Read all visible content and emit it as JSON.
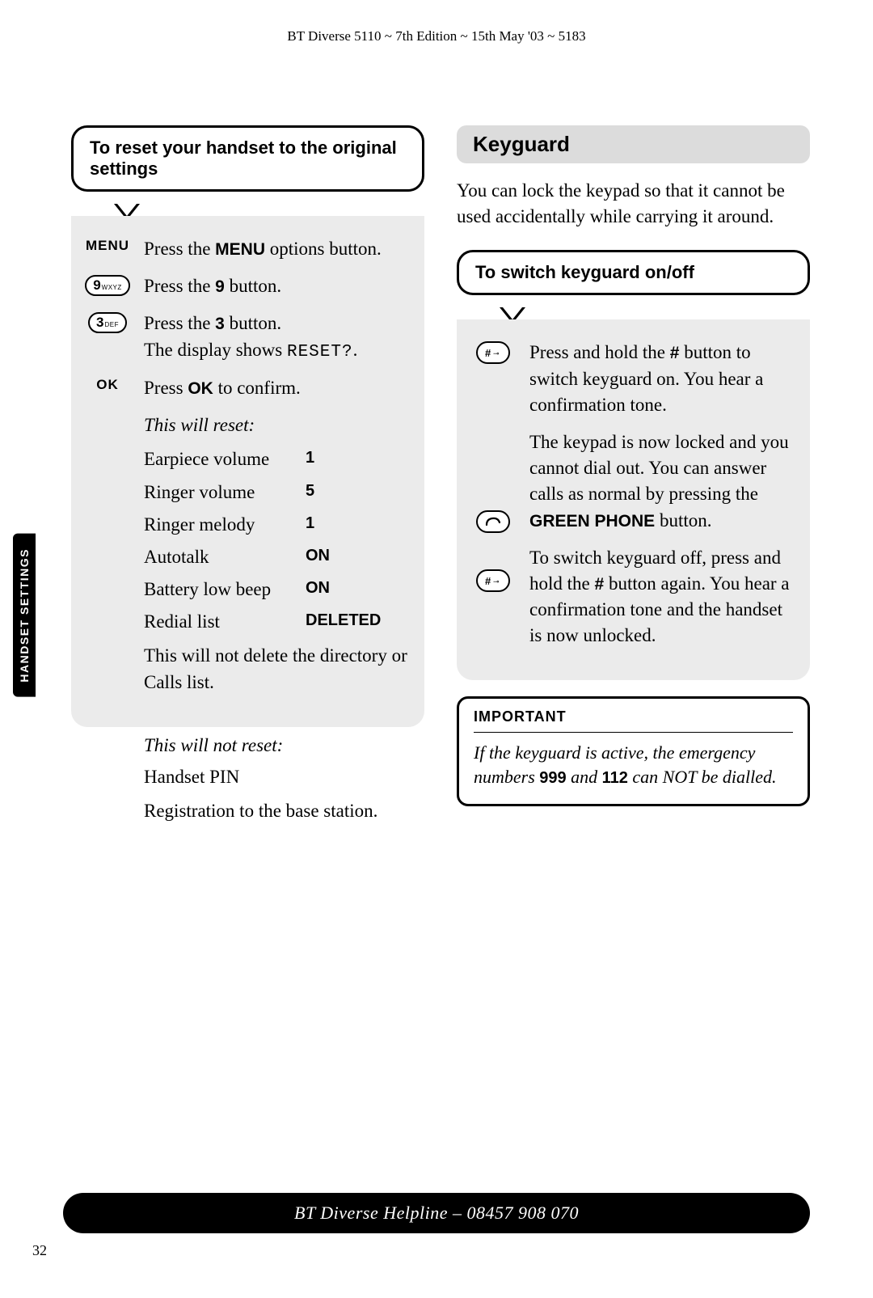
{
  "header": "BT Diverse 5110 ~ 7th Edition ~ 15th May '03 ~ 5183",
  "side_tab": "HANDSET SETTINGS",
  "left": {
    "callout": "To reset your handset to the original settings",
    "steps": {
      "menu_label": "MENU",
      "menu_text_a": "Press the ",
      "menu_bold": "MENU",
      "menu_text_b": " options button.",
      "key9_num": "9",
      "key9_sub": "WXYZ",
      "key9_text_a": "Press the ",
      "key9_bold": "9",
      "key9_text_b": " button.",
      "key3_num": "3",
      "key3_sub": "DEF",
      "key3_text_a": "Press the ",
      "key3_bold": "3",
      "key3_text_b": " button.",
      "key3_text_c": "The display shows ",
      "key3_mono": "RESET?",
      "ok_label": "OK",
      "ok_text_a": "Press ",
      "ok_bold": "OK",
      "ok_text_b": " to confirm.",
      "reset_hdr": "This will reset:",
      "table": [
        {
          "label": "Earpiece volume",
          "val": "1"
        },
        {
          "label": "Ringer volume",
          "val": "5"
        },
        {
          "label": "Ringer melody",
          "val": "1"
        },
        {
          "label": "Autotalk",
          "val": "ON"
        },
        {
          "label": "Battery low beep",
          "val": "ON"
        },
        {
          "label": "Redial list",
          "val": "DELETED"
        }
      ],
      "note1": "This will not delete the directory or Calls list.",
      "noreset_hdr": "This will not reset:",
      "noreset_1": "Handset PIN",
      "noreset_2": "Registration to the base station."
    }
  },
  "right": {
    "section": "Keyguard",
    "intro": "You can lock the keypad so that it cannot be used accidentally while carrying it around.",
    "callout": "To switch keyguard on/off",
    "step1_a": "Press and hold the ",
    "step1_hash": "#",
    "step1_b": " button to switch keyguard on. You hear a confirmation tone.",
    "step2_a": "The keypad is now locked and you cannot dial out. You can answer calls as normal by pressing the ",
    "step2_bold": "GREEN PHONE",
    "step2_b": " button.",
    "step3_a": "To switch keyguard off, press and hold the ",
    "step3_hash": "#",
    "step3_b": " button again. You hear a confirmation tone and the handset is now unlocked.",
    "important_hdr": "IMPORTANT",
    "important_a": "If the keyguard is active, the emergency numbers ",
    "important_n1": "999",
    "important_mid": " and ",
    "important_n2": "112",
    "important_b": " can NOT be dialled."
  },
  "footer": "BT Diverse Helpline – 08457 908 070",
  "page": "32"
}
